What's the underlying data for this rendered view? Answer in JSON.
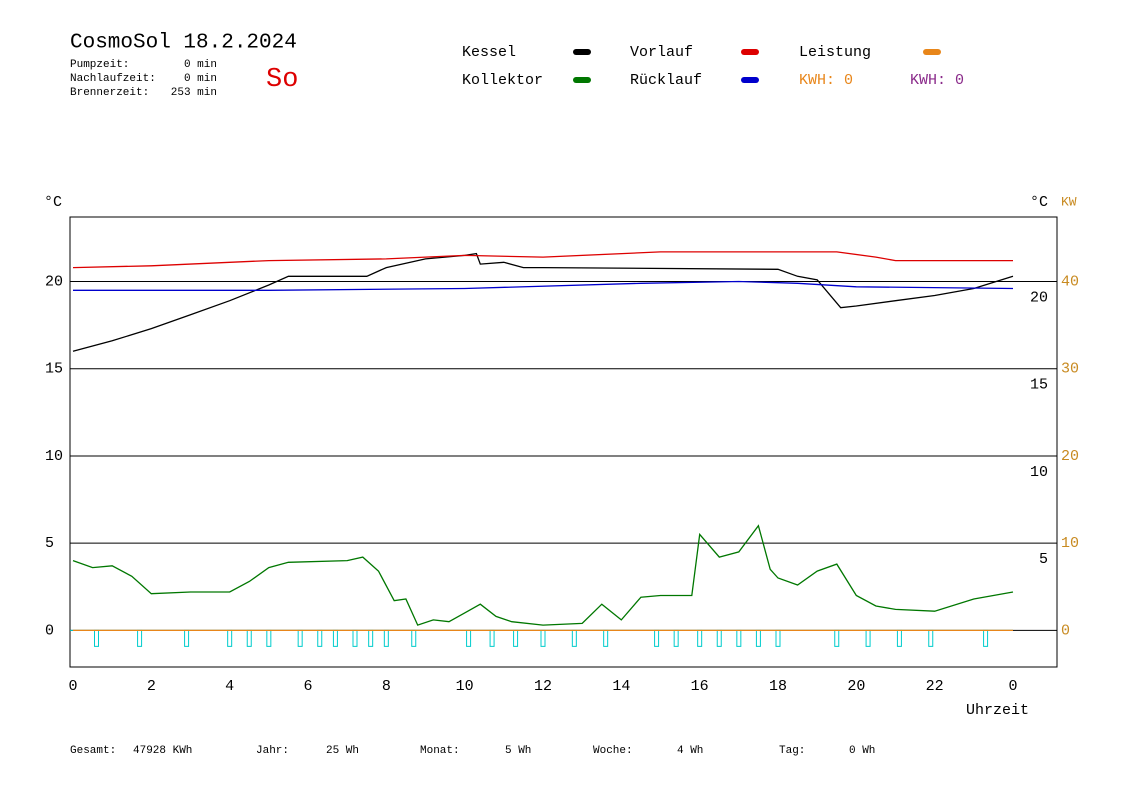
{
  "chart_data": {
    "type": "line",
    "title": "CosmoSol 18.2.2024",
    "day": "So",
    "info": [
      {
        "label": "Pumpzeit:",
        "value": "0 min"
      },
      {
        "label": "Nachlaufzeit:",
        "value": "0 min"
      },
      {
        "label": "Brennerzeit:",
        "value": "253 min"
      }
    ],
    "series": [
      {
        "name": "Kessel",
        "color": "#000000",
        "x": [
          0,
          1,
          2,
          3,
          4,
          5,
          5.5,
          7.5,
          8,
          9,
          10,
          10.3,
          10.4,
          11,
          11.5,
          12,
          18,
          18.5,
          19,
          19.6,
          20,
          21,
          22,
          23,
          24
        ],
        "values": [
          16,
          16.6,
          17.3,
          18.1,
          18.9,
          19.8,
          20.3,
          20.3,
          20.8,
          21.3,
          21.5,
          21.6,
          21,
          21.1,
          20.8,
          20.8,
          20.7,
          20.3,
          20.1,
          18.5,
          18.6,
          18.9,
          19.2,
          19.6,
          20.3
        ]
      },
      {
        "name": "Vorlauf",
        "color": "#dd0000",
        "x": [
          0,
          2,
          5,
          8,
          10,
          12,
          15,
          19.5,
          20.5,
          21,
          24
        ],
        "values": [
          20.8,
          20.9,
          21.2,
          21.3,
          21.5,
          21.4,
          21.7,
          21.7,
          21.4,
          21.2,
          21.2
        ]
      },
      {
        "name": "Leistung",
        "color": "#e8861a",
        "x": [
          0,
          24
        ],
        "values": [
          0,
          0
        ],
        "axis": "y2"
      },
      {
        "name": "Kollektor",
        "color": "#007700",
        "x": [
          0,
          0.5,
          1,
          1.5,
          2,
          3,
          4,
          4.5,
          5,
          5.5,
          7,
          7.4,
          7.8,
          8.2,
          8.5,
          8.8,
          9.2,
          9.6,
          10,
          10.4,
          10.8,
          11.2,
          12,
          13,
          13.5,
          14,
          14.5,
          15,
          15.8,
          16,
          16.5,
          17,
          17.5,
          17.8,
          18,
          18.5,
          19,
          19.5,
          20,
          20.5,
          21,
          22,
          23,
          24
        ],
        "values": [
          4,
          3.6,
          3.7,
          3.1,
          2.1,
          2.2,
          2.2,
          2.8,
          3.6,
          3.9,
          4,
          4.2,
          3.4,
          1.7,
          1.8,
          0.3,
          0.6,
          0.5,
          1,
          1.5,
          0.8,
          0.5,
          0.3,
          0.4,
          1.5,
          0.6,
          1.9,
          2,
          2,
          5.5,
          4.2,
          4.5,
          6,
          3.5,
          3,
          2.6,
          3.4,
          3.8,
          2,
          1.4,
          1.2,
          1.1,
          1.8,
          2.2
        ]
      },
      {
        "name": "Rücklauf",
        "color": "#0000cc",
        "x": [
          0,
          5,
          10,
          14.5,
          17,
          18.5,
          20,
          24
        ],
        "values": [
          19.5,
          19.5,
          19.6,
          19.9,
          20,
          19.9,
          19.7,
          19.6
        ]
      }
    ],
    "kwh": [
      {
        "label": "KWH: 0",
        "color": "#e8861a"
      },
      {
        "label": "KWH: 0",
        "color": "#8a2a8a"
      }
    ],
    "pulses": {
      "color": "#00cccc",
      "x": [
        0.6,
        1.7,
        2.9,
        4,
        4.5,
        5,
        5.8,
        6.3,
        6.7,
        7.2,
        7.6,
        8,
        8.7,
        10.1,
        10.7,
        11.3,
        12,
        12.8,
        13.6,
        14.9,
        15.4,
        16,
        16.5,
        17,
        17.5,
        18,
        19.5,
        20.3,
        21.1,
        21.9,
        23.3
      ]
    },
    "xlim": [
      0,
      24
    ],
    "xticks": [
      0,
      2,
      4,
      6,
      8,
      10,
      12,
      14,
      16,
      18,
      20,
      22,
      {
        "value": 24,
        "label": "0"
      }
    ],
    "xlabel": "Uhrzeit",
    "ylim": [
      -2.1,
      23.7
    ],
    "yticks": [
      0,
      5,
      10,
      15,
      20
    ],
    "yticks_right": [
      5,
      10,
      15,
      20
    ],
    "ylabel": "°C",
    "ylabel_right": "°C",
    "y2lim": [
      -4.2,
      47.4
    ],
    "y2ticks": [
      0,
      10,
      20,
      30,
      40
    ],
    "y2label": "KW",
    "y2color": "#c88a20",
    "grid": true,
    "footer": [
      {
        "label": "Gesamt:",
        "value": "47928 KWh"
      },
      {
        "label": "Jahr:",
        "value": "25 Wh"
      },
      {
        "label": "Monat:",
        "value": "5 Wh"
      },
      {
        "label": "Woche:",
        "value": "4 Wh"
      },
      {
        "label": "Tag:",
        "value": "0 Wh"
      }
    ]
  }
}
